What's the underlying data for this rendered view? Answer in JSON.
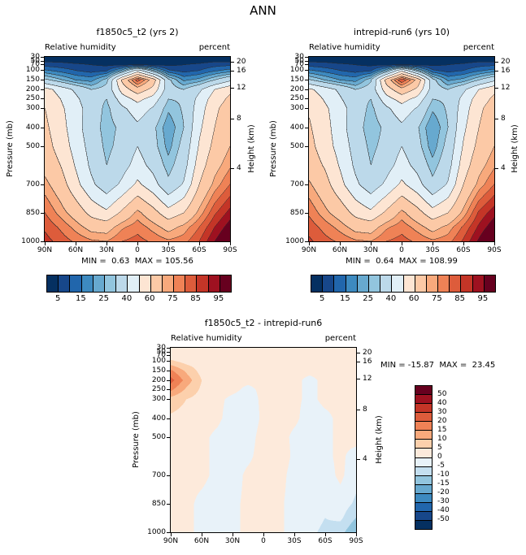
{
  "page_title": "ANN",
  "axes": {
    "ylabel": "Pressure (mb)",
    "ylabel_right": "Height (km)",
    "y_ticks": {
      "labels": [
        "30",
        "50",
        "70",
        "100",
        "150",
        "200",
        "250",
        "300",
        "400",
        "500",
        "700",
        "850",
        "1000"
      ],
      "pressures": [
        30,
        50,
        70,
        100,
        150,
        200,
        250,
        300,
        400,
        500,
        700,
        850,
        1000
      ]
    },
    "height_ticks": {
      "labels": [
        "20",
        "16",
        "12",
        "8",
        "4"
      ],
      "pressures": [
        55,
        103,
        194,
        356,
        616
      ]
    },
    "x_ticks": {
      "labels": [
        "90N",
        "60N",
        "30N",
        "0",
        "30S",
        "60S",
        "90S"
      ],
      "lats": [
        90,
        60,
        30,
        0,
        -30,
        -60,
        -90
      ]
    }
  },
  "chart_data": [
    {
      "type": "heatmap",
      "panel": "top-left",
      "title": "f1850c5_t2 (yrs 2)",
      "field_label": "Relative humidity",
      "units_label": "percent",
      "stats": "MIN =  0.63  MAX = 105.56",
      "contour_lines": true,
      "x_lats": [
        90,
        75,
        60,
        45,
        30,
        15,
        0,
        -15,
        -30,
        -45,
        -60,
        -75,
        -90
      ],
      "y_pressures": [
        30,
        50,
        70,
        100,
        150,
        200,
        250,
        300,
        400,
        500,
        600,
        700,
        850,
        925,
        1000
      ],
      "values": [
        [
          3,
          3,
          2,
          2,
          2,
          2,
          2,
          2,
          2,
          2,
          2,
          3,
          3
        ],
        [
          4,
          4,
          3,
          3,
          3,
          3,
          3,
          3,
          3,
          3,
          3,
          4,
          4
        ],
        [
          8,
          7,
          6,
          5,
          4,
          4,
          5,
          4,
          4,
          5,
          6,
          8,
          9
        ],
        [
          16,
          13,
          10,
          8,
          9,
          22,
          45,
          26,
          11,
          8,
          10,
          14,
          17
        ],
        [
          32,
          26,
          20,
          18,
          28,
          62,
          83,
          66,
          32,
          19,
          22,
          30,
          38
        ],
        [
          54,
          46,
          38,
          30,
          33,
          54,
          66,
          57,
          34,
          30,
          38,
          50,
          58
        ],
        [
          58,
          50,
          42,
          33,
          30,
          45,
          53,
          46,
          30,
          31,
          43,
          55,
          62
        ],
        [
          60,
          52,
          44,
          35,
          28,
          38,
          45,
          39,
          26,
          31,
          45,
          58,
          65
        ],
        [
          62,
          54,
          44,
          34,
          27,
          32,
          38,
          32,
          21,
          30,
          48,
          60,
          67
        ],
        [
          64,
          56,
          46,
          36,
          28,
          33,
          40,
          33,
          23,
          33,
          51,
          63,
          70
        ],
        [
          67,
          60,
          49,
          38,
          30,
          36,
          44,
          37,
          27,
          36,
          55,
          67,
          74
        ],
        [
          72,
          65,
          53,
          42,
          34,
          42,
          52,
          44,
          32,
          41,
          60,
          72,
          80
        ],
        [
          80,
          73,
          66,
          57,
          52,
          62,
          72,
          64,
          54,
          60,
          72,
          84,
          92
        ],
        [
          84,
          79,
          73,
          67,
          66,
          74,
          78,
          73,
          67,
          72,
          80,
          90,
          98
        ],
        [
          87,
          83,
          79,
          76,
          75,
          80,
          82,
          79,
          76,
          78,
          85,
          95,
          103
        ]
      ],
      "levels": [
        5,
        10,
        15,
        20,
        25,
        30,
        40,
        50,
        60,
        70,
        75,
        80,
        85,
        90,
        95
      ],
      "palette": [
        "#053061",
        "#17478a",
        "#2166ac",
        "#3d8ac0",
        "#67a9cf",
        "#92c5de",
        "#bcd9ea",
        "#e1eff7",
        "#fde5d3",
        "#fcc9a6",
        "#f8a97c",
        "#ef8256",
        "#dd5c3b",
        "#c43527",
        "#9e1120",
        "#67001f"
      ],
      "colorbar_labels": [
        "5",
        "15",
        "25",
        "40",
        "60",
        "75",
        "85",
        "95"
      ]
    },
    {
      "type": "heatmap",
      "panel": "top-right",
      "title": "intrepid-run6 (yrs 10)",
      "field_label": "Relative humidity",
      "units_label": "percent",
      "stats": "MIN =  0.64  MAX = 108.99",
      "contour_lines": true,
      "x_lats": [
        90,
        75,
        60,
        45,
        30,
        15,
        0,
        -15,
        -30,
        -45,
        -60,
        -75,
        -90
      ],
      "y_pressures": [
        30,
        50,
        70,
        100,
        150,
        200,
        250,
        300,
        400,
        500,
        600,
        700,
        850,
        925,
        1000
      ],
      "values": [
        [
          3,
          3,
          2,
          2,
          2,
          2,
          2,
          2,
          2,
          2,
          2,
          3,
          3
        ],
        [
          4,
          4,
          3,
          3,
          3,
          3,
          3,
          3,
          3,
          3,
          3,
          4,
          4
        ],
        [
          8,
          7,
          6,
          5,
          4,
          4,
          5,
          4,
          4,
          5,
          6,
          8,
          9
        ],
        [
          16,
          13,
          10,
          8,
          9,
          23,
          48,
          27,
          11,
          8,
          10,
          14,
          17
        ],
        [
          31,
          25,
          20,
          18,
          29,
          64,
          85,
          68,
          33,
          19,
          22,
          30,
          38
        ],
        [
          52,
          45,
          38,
          30,
          34,
          55,
          67,
          58,
          35,
          30,
          38,
          50,
          58
        ],
        [
          57,
          49,
          41,
          33,
          30,
          46,
          54,
          47,
          30,
          31,
          43,
          55,
          62
        ],
        [
          59,
          52,
          44,
          35,
          28,
          38,
          46,
          39,
          26,
          31,
          45,
          58,
          65
        ],
        [
          61,
          54,
          44,
          34,
          26,
          32,
          38,
          31,
          20,
          30,
          48,
          60,
          67
        ],
        [
          63,
          55,
          46,
          36,
          28,
          33,
          40,
          33,
          22,
          33,
          51,
          63,
          70
        ],
        [
          66,
          59,
          49,
          38,
          30,
          36,
          44,
          37,
          27,
          36,
          55,
          67,
          74
        ],
        [
          71,
          64,
          53,
          42,
          34,
          42,
          52,
          44,
          32,
          41,
          60,
          72,
          80
        ],
        [
          79,
          72,
          66,
          57,
          52,
          62,
          72,
          64,
          54,
          60,
          72,
          86,
          93
        ],
        [
          83,
          78,
          73,
          67,
          66,
          74,
          78,
          73,
          67,
          72,
          81,
          91,
          99
        ],
        [
          86,
          82,
          79,
          76,
          75,
          80,
          82,
          79,
          76,
          78,
          86,
          96,
          106
        ]
      ],
      "levels": [
        5,
        10,
        15,
        20,
        25,
        30,
        40,
        50,
        60,
        70,
        75,
        80,
        85,
        90,
        95
      ],
      "palette": [
        "#053061",
        "#17478a",
        "#2166ac",
        "#3d8ac0",
        "#67a9cf",
        "#92c5de",
        "#bcd9ea",
        "#e1eff7",
        "#fde5d3",
        "#fcc9a6",
        "#f8a97c",
        "#ef8256",
        "#dd5c3b",
        "#c43527",
        "#9e1120",
        "#67001f"
      ],
      "colorbar_labels": [
        "5",
        "15",
        "25",
        "40",
        "60",
        "75",
        "85",
        "95"
      ]
    },
    {
      "type": "heatmap",
      "panel": "bottom-difference",
      "title": "f1850c5_t2 - intrepid-run6",
      "field_label": "Relative humidity",
      "units_label": "percent",
      "stats": "MIN = -15.87  MAX =  23.45",
      "contour_lines": false,
      "x_lats": [
        90,
        75,
        60,
        45,
        30,
        15,
        0,
        -15,
        -30,
        -45,
        -60,
        -75,
        -90
      ],
      "y_pressures": [
        30,
        50,
        70,
        100,
        150,
        200,
        250,
        300,
        400,
        500,
        600,
        700,
        850,
        925,
        1000
      ],
      "values": [
        [
          1,
          1,
          1,
          1,
          1,
          1,
          1,
          1,
          1,
          1,
          1,
          1,
          1
        ],
        [
          1,
          1,
          1,
          1,
          1,
          1,
          1,
          1,
          1,
          1,
          1,
          1,
          1
        ],
        [
          2,
          1,
          1,
          1,
          1,
          1,
          1,
          1,
          1,
          1,
          1,
          1,
          1
        ],
        [
          6,
          3,
          2,
          1,
          1,
          1,
          1,
          1,
          1,
          1,
          1,
          1,
          1
        ],
        [
          16,
          9,
          3,
          2,
          1,
          1,
          1,
          1,
          1,
          1,
          1,
          2,
          2
        ],
        [
          22,
          13,
          5,
          2,
          1,
          1,
          1,
          1,
          1,
          -1,
          1,
          2,
          2
        ],
        [
          16,
          9,
          4,
          2,
          1,
          -1,
          1,
          1,
          1,
          -1,
          1,
          2,
          2
        ],
        [
          8,
          5,
          3,
          1,
          -1,
          -2,
          1,
          2,
          1,
          -1,
          1,
          1,
          1
        ],
        [
          4,
          3,
          2,
          1,
          -2,
          -3,
          1,
          2,
          1,
          -2,
          -1,
          1,
          2
        ],
        [
          3,
          2,
          1,
          -1,
          -3,
          -2,
          2,
          2,
          -1,
          -2,
          -1,
          1,
          2
        ],
        [
          2,
          2,
          1,
          -1,
          -2,
          -1,
          2,
          3,
          -1,
          -2,
          -1,
          1,
          -2
        ],
        [
          2,
          1,
          1,
          -1,
          -2,
          1,
          2,
          2,
          -2,
          -3,
          -2,
          1,
          -3
        ],
        [
          2,
          1,
          -1,
          -2,
          -1,
          1,
          2,
          1,
          -2,
          -3,
          -4,
          -2,
          -6
        ],
        [
          2,
          1,
          -1,
          -2,
          -1,
          1,
          2,
          1,
          -2,
          -3,
          -5,
          -4,
          -10
        ],
        [
          2,
          1,
          -1,
          -2,
          -1,
          1,
          2,
          1,
          -2,
          -4,
          -6,
          -8,
          -15
        ]
      ],
      "levels": [
        -50,
        -40,
        -30,
        -20,
        -15,
        -10,
        -5,
        0,
        5,
        10,
        15,
        20,
        30,
        40,
        50
      ],
      "palette": [
        "#053061",
        "#17478a",
        "#2166ac",
        "#3d8ac0",
        "#67a9cf",
        "#92c5de",
        "#c4dff0",
        "#e8f2f9",
        "#fdeadb",
        "#fcd0ac",
        "#f8a97c",
        "#ef8256",
        "#dd5c3b",
        "#c43527",
        "#9e1120",
        "#67001f"
      ],
      "colorbar_labels": [
        "50",
        "40",
        "30",
        "20",
        "15",
        "10",
        "5",
        "0",
        "-5",
        "-10",
        "-15",
        "-20",
        "-30",
        "-40",
        "-50"
      ]
    }
  ]
}
